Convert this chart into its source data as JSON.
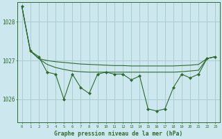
{
  "title": "Graphe pression niveau de la mer (hPa)",
  "background_color": "#cce8ee",
  "grid_color": "#aacccc",
  "line_color": "#2d6a2d",
  "x_labels": [
    "0",
    "1",
    "2",
    "3",
    "4",
    "5",
    "6",
    "7",
    "8",
    "9",
    "10",
    "11",
    "12",
    "13",
    "14",
    "15",
    "16",
    "17",
    "18",
    "19",
    "20",
    "21",
    "22",
    "23"
  ],
  "ylim": [
    1025.4,
    1028.5
  ],
  "yticks": [
    1026,
    1027,
    1028
  ],
  "hours": [
    0,
    1,
    2,
    3,
    4,
    5,
    6,
    7,
    8,
    9,
    10,
    11,
    12,
    13,
    14,
    15,
    16,
    17,
    18,
    19,
    20,
    21,
    22,
    23
  ],
  "line_jagged": [
    1028.4,
    1027.25,
    1027.1,
    1026.7,
    1026.65,
    1026.0,
    1026.65,
    1026.3,
    1026.15,
    1026.65,
    1026.7,
    1026.65,
    1026.65,
    1026.5,
    1026.6,
    1025.75,
    1025.7,
    1025.75,
    1026.3,
    1026.65,
    1026.55,
    1026.65,
    1027.05,
    1027.1
  ],
  "line_smooth_top": [
    1028.4,
    1027.25,
    1027.05,
    1027.0,
    1026.97,
    1026.95,
    1026.93,
    1026.91,
    1026.9,
    1026.89,
    1026.88,
    1026.87,
    1026.87,
    1026.86,
    1026.86,
    1026.86,
    1026.86,
    1026.86,
    1026.86,
    1026.87,
    1026.88,
    1026.9,
    1027.05,
    1027.1
  ],
  "line_smooth_bot": [
    1028.4,
    1027.25,
    1027.05,
    1026.9,
    1026.82,
    1026.77,
    1026.73,
    1026.71,
    1026.7,
    1026.7,
    1026.7,
    1026.7,
    1026.7,
    1026.7,
    1026.7,
    1026.7,
    1026.7,
    1026.7,
    1026.7,
    1026.71,
    1026.73,
    1026.75,
    1027.05,
    1027.1
  ],
  "figsize": [
    3.2,
    2.0
  ],
  "dpi": 100
}
